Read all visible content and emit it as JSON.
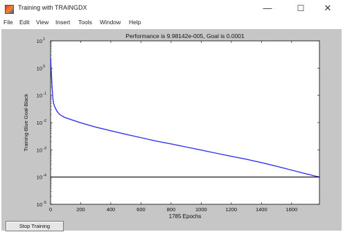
{
  "window": {
    "title": "Training with TRAINGDX",
    "controls": {
      "minimize": "—",
      "maximize": "☐",
      "close": "✕"
    }
  },
  "menu": [
    {
      "label": "File"
    },
    {
      "label": "Edit"
    },
    {
      "label": "View"
    },
    {
      "label": "Insert"
    },
    {
      "label": "Tools"
    },
    {
      "label": "Window"
    },
    {
      "label": "Help"
    }
  ],
  "buttons": {
    "stop_training": "Stop Training"
  },
  "chart_data": {
    "type": "line",
    "title": "Performance is 9.98142e-005, Goal is 0.0001",
    "xlabel": "1785 Epochs",
    "ylabel": "Training-Blue  Goal-Black",
    "xlim": [
      0,
      1785
    ],
    "ylim": [
      1e-05,
      10
    ],
    "yscale": "log",
    "x_ticks": [
      "0",
      "200",
      "400",
      "600",
      "800",
      "1000",
      "1200",
      "1400",
      "1600"
    ],
    "y_ticks": [
      {
        "base": "10",
        "exp": "1"
      },
      {
        "base": "10",
        "exp": "0"
      },
      {
        "base": "10",
        "exp": "-1"
      },
      {
        "base": "10",
        "exp": "-2"
      },
      {
        "base": "10",
        "exp": "-3"
      },
      {
        "base": "10",
        "exp": "-4"
      },
      {
        "base": "10",
        "exp": "-5"
      }
    ],
    "series": [
      {
        "color": "#3333ee",
        "x": [
          0,
          5,
          10,
          15,
          20,
          30,
          45,
          60,
          80,
          100,
          200,
          300,
          400,
          500,
          600,
          700,
          800,
          900,
          1000,
          1100,
          1200,
          1300,
          1400,
          1500,
          1600,
          1700,
          1785
        ],
        "y": [
          2.5,
          0.7,
          0.2,
          0.08,
          0.05,
          0.035,
          0.025,
          0.02,
          0.017,
          0.015,
          0.0098,
          0.0068,
          0.005,
          0.0037,
          0.0028,
          0.0021,
          0.00165,
          0.00127,
          0.00098,
          0.00075,
          0.00058,
          0.00045,
          0.00034,
          0.00025,
          0.00018,
          0.00013,
          9.98e-05
        ]
      },
      {
        "color": "#000000",
        "x": [
          0,
          1785
        ],
        "y": [
          0.0001,
          0.0001
        ]
      }
    ],
    "colors": {
      "figure_bg": "#c6c6c6",
      "axes_bg": "#ffffff",
      "training": "#3333ee",
      "goal": "#000000"
    }
  }
}
